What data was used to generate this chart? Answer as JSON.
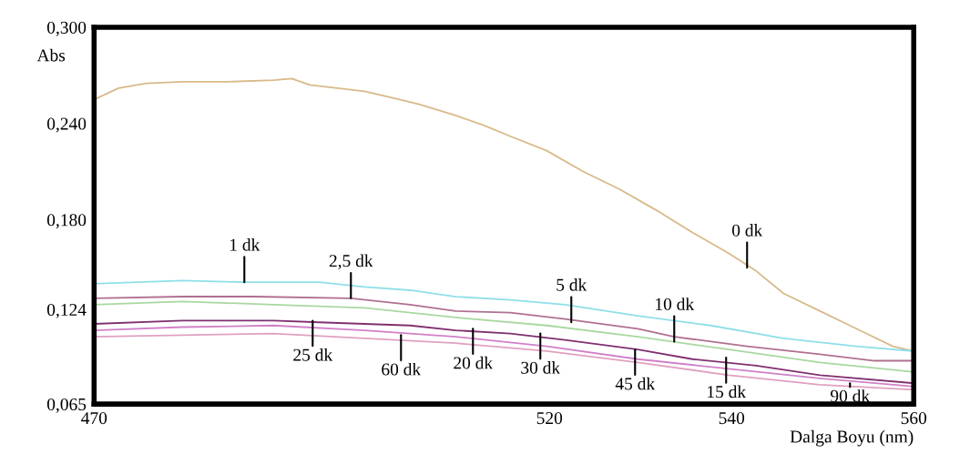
{
  "chart_data": {
    "type": "line",
    "xlabel": "Dalga Boyu (nm)",
    "ylabel": "Abs",
    "xlim": [
      470,
      560
    ],
    "ylim": [
      0.065,
      0.3
    ],
    "xticks": [
      470,
      520,
      540,
      560
    ],
    "yticks": [
      {
        "value": 0.065,
        "label": "0,065"
      },
      {
        "value": 0.124,
        "label": "0,124"
      },
      {
        "value": 0.18,
        "label": "0,180"
      },
      {
        "value": 0.24,
        "label": "0,240"
      },
      {
        "value": 0.3,
        "label": "0,300"
      }
    ],
    "grid": false,
    "legend": false,
    "marker": "none",
    "line_style": "solid",
    "series": [
      {
        "color": "#d9b98a",
        "x": [
          470,
          472.7,
          475.7,
          479.7,
          484.7,
          489.7,
          491.7,
          493.7,
          496.7,
          499.7,
          502.7,
          505.7,
          509.7,
          512.7,
          515.7,
          519.7,
          523.7,
          527.7,
          531.7,
          535.7,
          539.7,
          542.7,
          545.7,
          549.7,
          553.7,
          557.7,
          560
        ],
        "values": [
          0.255,
          0.262,
          0.265,
          0.266,
          0.266,
          0.267,
          0.268,
          0.264,
          0.262,
          0.26,
          0.256,
          0.252,
          0.245,
          0.239,
          0.232,
          0.223,
          0.21,
          0.199,
          0.186,
          0.172,
          0.159,
          0.148,
          0.134,
          0.123,
          0.112,
          0.101,
          0.098
        ]
      },
      {
        "color": "#8fdfe8",
        "x": [
          470,
          479.7,
          486.7,
          494.7,
          499.7,
          504.7,
          509.7,
          515.7,
          521.7,
          529.7,
          537.7,
          545.7,
          553.7,
          560
        ],
        "values": [
          0.14,
          0.142,
          0.141,
          0.141,
          0.138,
          0.136,
          0.132,
          0.13,
          0.127,
          0.12,
          0.114,
          0.106,
          0.101,
          0.098
        ]
      },
      {
        "color": "#b07090",
        "x": [
          470,
          479.7,
          487.7,
          498.2,
          504.7,
          509.7,
          515.7,
          521.7,
          529.7,
          533.7,
          541.7,
          549.7,
          555.7,
          560
        ],
        "values": [
          0.131,
          0.132,
          0.132,
          0.131,
          0.127,
          0.123,
          0.122,
          0.118,
          0.112,
          0.107,
          0.101,
          0.096,
          0.092,
          0.092
        ]
      },
      {
        "color": "#a8d8a0",
        "x": [
          470,
          479.7,
          489.7,
          499.7,
          509.7,
          519.7,
          529.7,
          539.7,
          549.7,
          560
        ],
        "values": [
          0.127,
          0.129,
          0.127,
          0.125,
          0.119,
          0.114,
          0.107,
          0.099,
          0.091,
          0.085
        ]
      },
      {
        "color": "#803070",
        "x": [
          470,
          479.7,
          489.7,
          494.7,
          504.7,
          509.7,
          515.7,
          521.7,
          529.7,
          535.7,
          542.7,
          549.7,
          560
        ],
        "values": [
          0.115,
          0.117,
          0.117,
          0.116,
          0.114,
          0.111,
          0.109,
          0.105,
          0.099,
          0.093,
          0.089,
          0.083,
          0.078
        ]
      },
      {
        "color": "#d080c8",
        "x": [
          470,
          479.7,
          489.7,
          499.7,
          509.7,
          519.7,
          529.7,
          539.7,
          549.7,
          560
        ],
        "values": [
          0.111,
          0.113,
          0.114,
          0.111,
          0.107,
          0.101,
          0.093,
          0.087,
          0.081,
          0.076
        ]
      },
      {
        "color": "#e0a0c0",
        "x": [
          470,
          479.7,
          489.7,
          499.7,
          509.7,
          519.7,
          529.7,
          539.7,
          549.7,
          560
        ],
        "values": [
          0.107,
          0.108,
          0.109,
          0.106,
          0.103,
          0.098,
          0.091,
          0.083,
          0.077,
          0.074
        ]
      }
    ],
    "annotations": [
      {
        "text": "0 dk",
        "x": 541.7,
        "y": 0.15
      },
      {
        "text": "1 dk",
        "x": 486.5,
        "y": 0.141
      },
      {
        "text": "2,5 dk",
        "x": 498.2,
        "y": 0.131
      },
      {
        "text": "5 dk",
        "x": 522.4,
        "y": 0.116
      },
      {
        "text": "10 dk",
        "x": 533.7,
        "y": 0.104
      },
      {
        "text": "15 dk",
        "x": 539.4,
        "y": 0.094
      },
      {
        "text": "20 dk",
        "x": 511.6,
        "y": 0.112
      },
      {
        "text": "25 dk",
        "x": 494.0,
        "y": 0.117
      },
      {
        "text": "30 dk",
        "x": 519.0,
        "y": 0.109
      },
      {
        "text": "45 dk",
        "x": 529.4,
        "y": 0.099
      },
      {
        "text": "60 dk",
        "x": 503.7,
        "y": 0.108
      },
      {
        "text": "90 dk",
        "x": 553.0,
        "y": 0.078
      }
    ]
  }
}
